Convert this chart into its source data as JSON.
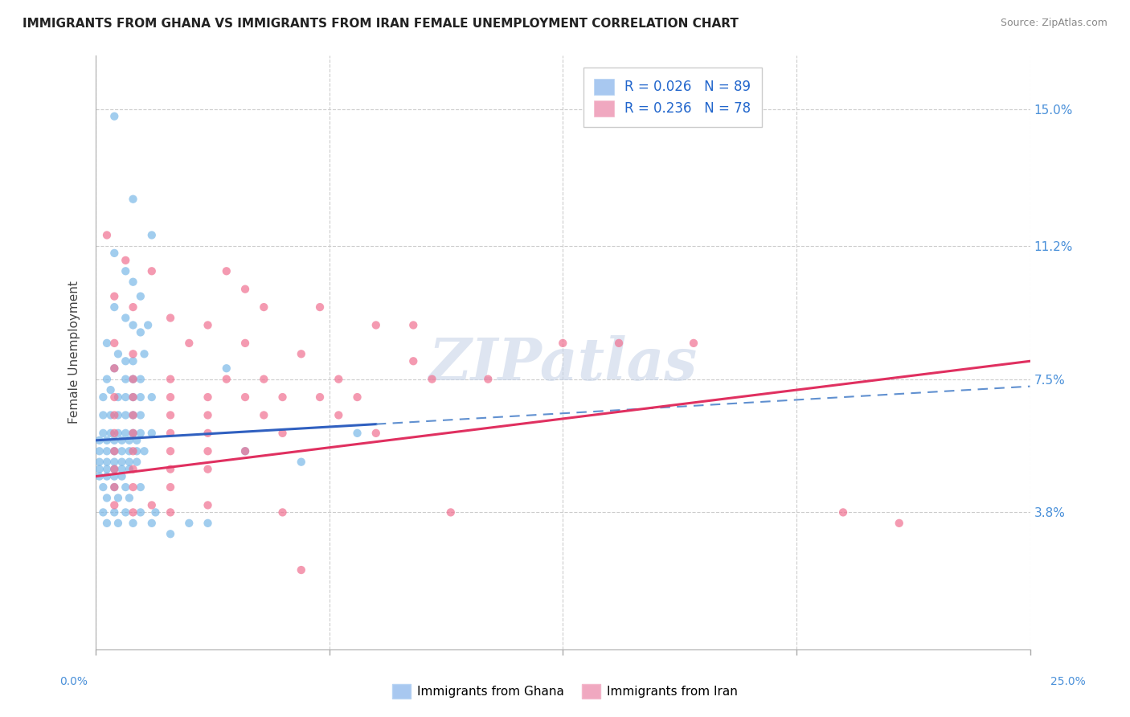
{
  "title": "IMMIGRANTS FROM GHANA VS IMMIGRANTS FROM IRAN FEMALE UNEMPLOYMENT CORRELATION CHART",
  "source": "Source: ZipAtlas.com",
  "ylabel": "Female Unemployment",
  "yticks": [
    3.8,
    7.5,
    11.2,
    15.0
  ],
  "ytick_labels": [
    "3.8%",
    "7.5%",
    "11.2%",
    "15.0%"
  ],
  "xmin": 0.0,
  "xmax": 25.0,
  "ymin": 0.0,
  "ymax": 16.5,
  "ghana_color": "#7ab8e8",
  "iran_color": "#f07090",
  "ghana_line_color": "#3060c0",
  "iran_line_color": "#e03060",
  "ghana_R": 0.026,
  "ghana_N": 89,
  "iran_R": 0.236,
  "iran_N": 78,
  "watermark_text": "ZIPatlas",
  "legend_ghana_label": "R = 0.026   N = 89",
  "legend_iran_label": "R = 0.236   N = 78",
  "bottom_legend_ghana": "Immigrants from Ghana",
  "bottom_legend_iran": "Immigrants from Iran",
  "ghana_line_start_x": 0.0,
  "ghana_line_end_solid_x": 7.5,
  "ghana_line_end_x": 25.0,
  "ghana_line_y_at_0": 5.8,
  "ghana_line_y_at_25": 7.3,
  "iran_line_y_at_0": 4.8,
  "iran_line_y_at_25": 8.0,
  "ghana_points": [
    [
      0.5,
      14.8
    ],
    [
      1.0,
      12.5
    ],
    [
      1.5,
      11.5
    ],
    [
      0.5,
      11.0
    ],
    [
      0.8,
      10.5
    ],
    [
      1.0,
      10.2
    ],
    [
      1.2,
      9.8
    ],
    [
      0.5,
      9.5
    ],
    [
      0.8,
      9.2
    ],
    [
      1.0,
      9.0
    ],
    [
      1.2,
      8.8
    ],
    [
      1.4,
      9.0
    ],
    [
      0.3,
      8.5
    ],
    [
      0.6,
      8.2
    ],
    [
      0.8,
      8.0
    ],
    [
      1.0,
      8.0
    ],
    [
      1.3,
      8.2
    ],
    [
      0.3,
      7.5
    ],
    [
      0.5,
      7.8
    ],
    [
      0.8,
      7.5
    ],
    [
      1.0,
      7.5
    ],
    [
      1.2,
      7.5
    ],
    [
      3.5,
      7.8
    ],
    [
      0.2,
      7.0
    ],
    [
      0.4,
      7.2
    ],
    [
      0.6,
      7.0
    ],
    [
      0.8,
      7.0
    ],
    [
      1.0,
      7.0
    ],
    [
      1.2,
      7.0
    ],
    [
      1.5,
      7.0
    ],
    [
      0.2,
      6.5
    ],
    [
      0.4,
      6.5
    ],
    [
      0.6,
      6.5
    ],
    [
      0.8,
      6.5
    ],
    [
      1.0,
      6.5
    ],
    [
      1.2,
      6.5
    ],
    [
      0.2,
      6.0
    ],
    [
      0.4,
      6.0
    ],
    [
      0.6,
      6.0
    ],
    [
      0.8,
      6.0
    ],
    [
      1.0,
      6.0
    ],
    [
      1.2,
      6.0
    ],
    [
      1.5,
      6.0
    ],
    [
      0.1,
      5.8
    ],
    [
      0.3,
      5.8
    ],
    [
      0.5,
      5.8
    ],
    [
      0.7,
      5.8
    ],
    [
      0.9,
      5.8
    ],
    [
      1.1,
      5.8
    ],
    [
      0.1,
      5.5
    ],
    [
      0.3,
      5.5
    ],
    [
      0.5,
      5.5
    ],
    [
      0.7,
      5.5
    ],
    [
      0.9,
      5.5
    ],
    [
      1.1,
      5.5
    ],
    [
      1.3,
      5.5
    ],
    [
      0.1,
      5.2
    ],
    [
      0.3,
      5.2
    ],
    [
      0.5,
      5.2
    ],
    [
      0.7,
      5.2
    ],
    [
      0.9,
      5.2
    ],
    [
      1.1,
      5.2
    ],
    [
      0.1,
      5.0
    ],
    [
      0.3,
      5.0
    ],
    [
      0.5,
      5.0
    ],
    [
      0.7,
      5.0
    ],
    [
      0.9,
      5.0
    ],
    [
      0.1,
      4.8
    ],
    [
      0.3,
      4.8
    ],
    [
      0.5,
      4.8
    ],
    [
      0.7,
      4.8
    ],
    [
      0.2,
      4.5
    ],
    [
      0.5,
      4.5
    ],
    [
      0.8,
      4.5
    ],
    [
      1.2,
      4.5
    ],
    [
      0.3,
      4.2
    ],
    [
      0.6,
      4.2
    ],
    [
      0.9,
      4.2
    ],
    [
      0.2,
      3.8
    ],
    [
      0.5,
      3.8
    ],
    [
      0.8,
      3.8
    ],
    [
      1.2,
      3.8
    ],
    [
      1.6,
      3.8
    ],
    [
      0.3,
      3.5
    ],
    [
      0.6,
      3.5
    ],
    [
      1.0,
      3.5
    ],
    [
      1.5,
      3.5
    ],
    [
      2.5,
      3.5
    ],
    [
      2.0,
      3.2
    ],
    [
      3.0,
      3.5
    ],
    [
      4.0,
      5.5
    ],
    [
      5.5,
      5.2
    ],
    [
      7.0,
      6.0
    ]
  ],
  "iran_points": [
    [
      0.3,
      11.5
    ],
    [
      0.8,
      10.8
    ],
    [
      1.5,
      10.5
    ],
    [
      3.5,
      10.5
    ],
    [
      4.0,
      10.0
    ],
    [
      0.5,
      9.8
    ],
    [
      1.0,
      9.5
    ],
    [
      2.0,
      9.2
    ],
    [
      3.0,
      9.0
    ],
    [
      4.5,
      9.5
    ],
    [
      6.0,
      9.5
    ],
    [
      7.5,
      9.0
    ],
    [
      8.5,
      9.0
    ],
    [
      0.5,
      8.5
    ],
    [
      1.0,
      8.2
    ],
    [
      2.5,
      8.5
    ],
    [
      4.0,
      8.5
    ],
    [
      5.5,
      8.2
    ],
    [
      8.5,
      8.0
    ],
    [
      12.5,
      8.5
    ],
    [
      14.0,
      8.5
    ],
    [
      16.0,
      8.5
    ],
    [
      0.5,
      7.8
    ],
    [
      1.0,
      7.5
    ],
    [
      2.0,
      7.5
    ],
    [
      3.5,
      7.5
    ],
    [
      4.5,
      7.5
    ],
    [
      6.5,
      7.5
    ],
    [
      9.0,
      7.5
    ],
    [
      10.5,
      7.5
    ],
    [
      0.5,
      7.0
    ],
    [
      1.0,
      7.0
    ],
    [
      2.0,
      7.0
    ],
    [
      3.0,
      7.0
    ],
    [
      4.0,
      7.0
    ],
    [
      5.0,
      7.0
    ],
    [
      6.0,
      7.0
    ],
    [
      7.0,
      7.0
    ],
    [
      0.5,
      6.5
    ],
    [
      1.0,
      6.5
    ],
    [
      2.0,
      6.5
    ],
    [
      3.0,
      6.5
    ],
    [
      4.5,
      6.5
    ],
    [
      6.5,
      6.5
    ],
    [
      0.5,
      6.0
    ],
    [
      1.0,
      6.0
    ],
    [
      2.0,
      6.0
    ],
    [
      3.0,
      6.0
    ],
    [
      5.0,
      6.0
    ],
    [
      7.5,
      6.0
    ],
    [
      0.5,
      5.5
    ],
    [
      1.0,
      5.5
    ],
    [
      2.0,
      5.5
    ],
    [
      3.0,
      5.5
    ],
    [
      4.0,
      5.5
    ],
    [
      0.5,
      5.0
    ],
    [
      1.0,
      5.0
    ],
    [
      2.0,
      5.0
    ],
    [
      3.0,
      5.0
    ],
    [
      0.5,
      4.5
    ],
    [
      1.0,
      4.5
    ],
    [
      2.0,
      4.5
    ],
    [
      0.5,
      4.0
    ],
    [
      1.5,
      4.0
    ],
    [
      3.0,
      4.0
    ],
    [
      1.0,
      3.8
    ],
    [
      2.0,
      3.8
    ],
    [
      5.0,
      3.8
    ],
    [
      9.5,
      3.8
    ],
    [
      20.0,
      3.8
    ],
    [
      21.5,
      3.5
    ],
    [
      5.5,
      2.2
    ]
  ]
}
